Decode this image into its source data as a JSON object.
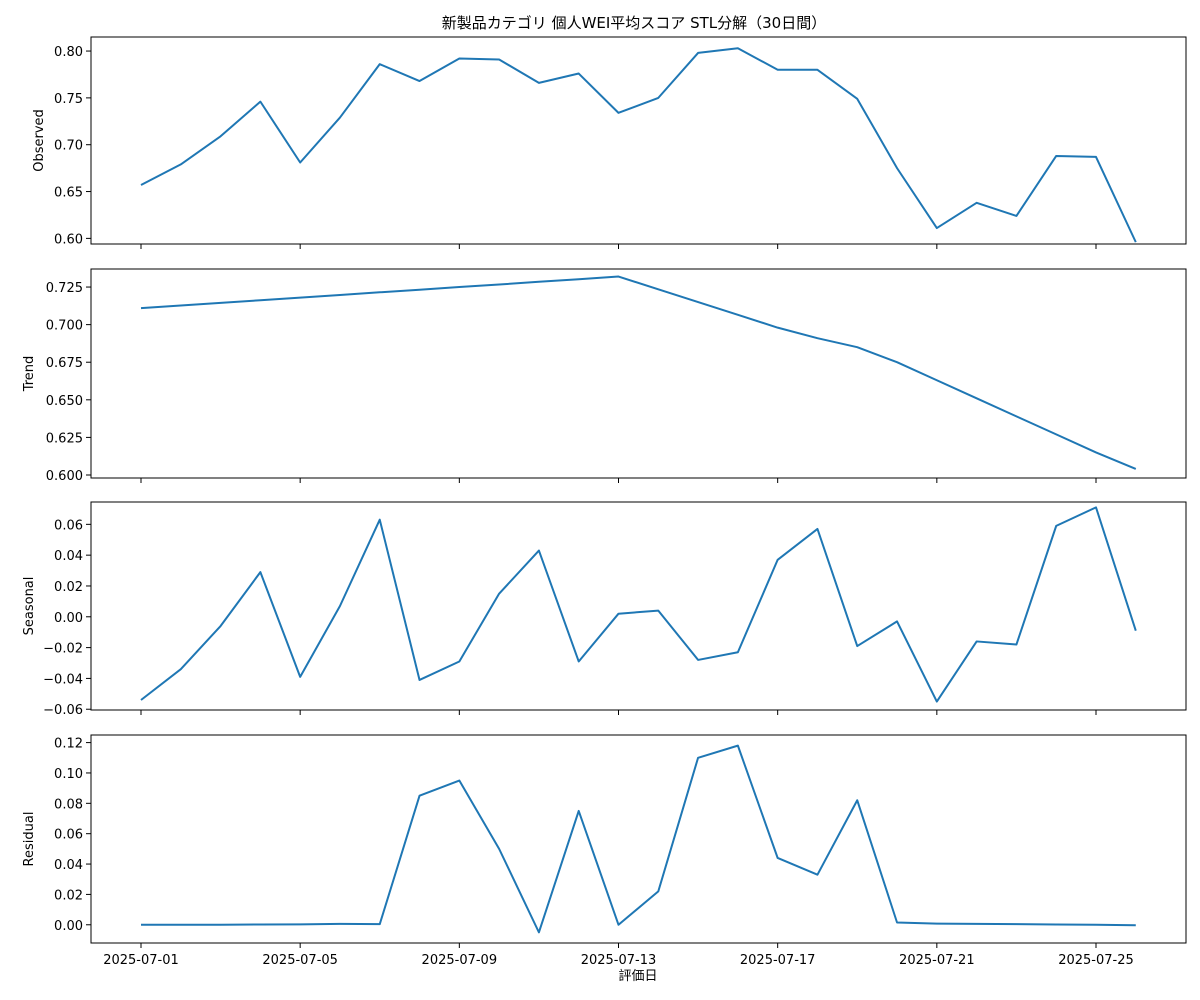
{
  "chart_data": {
    "type": "line",
    "title": "新製品カテゴリ 個人WEI平均スコア STL分解（30日間）",
    "xlabel": "評価日",
    "x_tick_labels": [
      "2025-07-01",
      "2025-07-05",
      "2025-07-09",
      "2025-07-13",
      "2025-07-17",
      "2025-07-21",
      "2025-07-25"
    ],
    "x": [
      "2025-07-01",
      "2025-07-02",
      "2025-07-03",
      "2025-07-04",
      "2025-07-05",
      "2025-07-06",
      "2025-07-07",
      "2025-07-08",
      "2025-07-09",
      "2025-07-10",
      "2025-07-11",
      "2025-07-12",
      "2025-07-13",
      "2025-07-14",
      "2025-07-15",
      "2025-07-16",
      "2025-07-17",
      "2025-07-18",
      "2025-07-19",
      "2025-07-20",
      "2025-07-21",
      "2025-07-22",
      "2025-07-23",
      "2025-07-24",
      "2025-07-25",
      "2025-07-26"
    ],
    "color": "#1f77b4",
    "grid": false,
    "panels": [
      {
        "ylabel": "Observed",
        "ylim": [
          0.594,
          0.815
        ],
        "yticks": [
          0.6,
          0.65,
          0.7,
          0.75,
          0.8
        ],
        "ytick_labels": [
          "0.60",
          "0.65",
          "0.70",
          "0.75",
          "0.80"
        ],
        "values": [
          0.657,
          0.679,
          0.709,
          0.746,
          0.681,
          0.729,
          0.786,
          0.768,
          0.792,
          0.791,
          0.766,
          0.776,
          0.734,
          0.75,
          0.798,
          0.803,
          0.78,
          0.78,
          0.749,
          0.675,
          0.611,
          0.638,
          0.624,
          0.688,
          0.687,
          0.596
        ]
      },
      {
        "ylabel": "Trend",
        "ylim": [
          0.598,
          0.737
        ],
        "yticks": [
          0.6,
          0.625,
          0.65,
          0.675,
          0.7,
          0.725
        ],
        "ytick_labels": [
          "0.600",
          "0.625",
          "0.650",
          "0.675",
          "0.700",
          "0.725"
        ],
        "values": [
          0.711,
          0.7127,
          0.7145,
          0.7162,
          0.718,
          0.7197,
          0.7215,
          0.7232,
          0.725,
          0.7267,
          0.7285,
          0.7302,
          0.732,
          0.7235,
          0.715,
          0.7065,
          0.698,
          0.691,
          0.685,
          0.675,
          0.663,
          0.651,
          0.639,
          0.627,
          0.615,
          0.604
        ]
      },
      {
        "ylabel": "Seasonal",
        "ylim": [
          -0.0605,
          0.0745
        ],
        "yticks": [
          -0.06,
          -0.04,
          -0.02,
          0.0,
          0.02,
          0.04,
          0.06
        ],
        "ytick_labels": [
          "−0.06",
          "−0.04",
          "−0.02",
          "0.00",
          "0.02",
          "0.04",
          "0.06"
        ],
        "values": [
          -0.054,
          -0.034,
          -0.006,
          0.029,
          -0.039,
          0.007,
          0.063,
          -0.041,
          -0.029,
          0.015,
          0.043,
          -0.029,
          0.002,
          0.004,
          -0.028,
          -0.023,
          0.037,
          0.057,
          -0.019,
          -0.003,
          -0.055,
          -0.016,
          -0.018,
          0.059,
          0.071,
          -0.009
        ]
      },
      {
        "ylabel": "Residual",
        "ylim": [
          -0.012,
          0.125
        ],
        "yticks": [
          0.0,
          0.02,
          0.04,
          0.06,
          0.08,
          0.1,
          0.12
        ],
        "ytick_labels": [
          "0.00",
          "0.02",
          "0.04",
          "0.06",
          "0.08",
          "0.10",
          "0.12"
        ],
        "values": [
          0.0,
          0.0,
          0.0,
          0.0002,
          0.0003,
          0.0006,
          0.0004,
          0.085,
          0.095,
          0.05,
          -0.005,
          0.075,
          0.0,
          0.022,
          0.11,
          0.118,
          0.044,
          0.033,
          0.082,
          0.0015,
          0.0008,
          0.0006,
          0.0004,
          0.0002,
          0.0,
          -0.0003
        ]
      }
    ]
  }
}
